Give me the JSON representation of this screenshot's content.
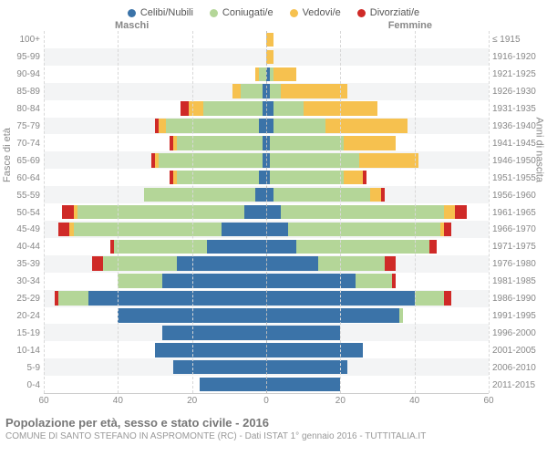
{
  "legend": [
    {
      "label": "Celibi/Nubili",
      "color": "#3b73a8"
    },
    {
      "label": "Coniugati/e",
      "color": "#b4d698"
    },
    {
      "label": "Vedovi/e",
      "color": "#f6c14f"
    },
    {
      "label": "Divorziati/e",
      "color": "#cf2a27"
    }
  ],
  "side_left": "Maschi",
  "side_right": "Femmine",
  "yaxis_left_title": "Fasce di età",
  "yaxis_right_title": "Anni di nascita",
  "age_groups": [
    "100+",
    "95-99",
    "90-94",
    "85-89",
    "80-84",
    "75-79",
    "70-74",
    "65-69",
    "60-64",
    "55-59",
    "50-54",
    "45-49",
    "40-44",
    "35-39",
    "30-34",
    "25-29",
    "20-24",
    "15-19",
    "10-14",
    "5-9",
    "0-4"
  ],
  "birth_years": [
    "≤ 1915",
    "1916-1920",
    "1921-1925",
    "1926-1930",
    "1931-1935",
    "1936-1940",
    "1941-1945",
    "1946-1950",
    "1951-1955",
    "1956-1960",
    "1961-1965",
    "1966-1970",
    "1971-1975",
    "1976-1980",
    "1981-1985",
    "1986-1990",
    "1991-1995",
    "1996-2000",
    "2001-2005",
    "2006-2010",
    "2011-2015"
  ],
  "xmax": 60,
  "xticks_left": [
    60,
    40,
    20,
    0
  ],
  "xticks_right": [
    0,
    20,
    40,
    60
  ],
  "data": {
    "male": [
      {
        "c": 0,
        "m": 0,
        "w": 0,
        "d": 0
      },
      {
        "c": 0,
        "m": 0,
        "w": 0,
        "d": 0
      },
      {
        "c": 0,
        "m": 2,
        "w": 1,
        "d": 0
      },
      {
        "c": 1,
        "m": 6,
        "w": 2,
        "d": 0
      },
      {
        "c": 1,
        "m": 16,
        "w": 4,
        "d": 2
      },
      {
        "c": 2,
        "m": 25,
        "w": 2,
        "d": 1
      },
      {
        "c": 1,
        "m": 23,
        "w": 1,
        "d": 1
      },
      {
        "c": 1,
        "m": 28,
        "w": 1,
        "d": 1
      },
      {
        "c": 2,
        "m": 22,
        "w": 1,
        "d": 1
      },
      {
        "c": 3,
        "m": 30,
        "w": 0,
        "d": 0
      },
      {
        "c": 6,
        "m": 45,
        "w": 1,
        "d": 3
      },
      {
        "c": 12,
        "m": 40,
        "w": 1,
        "d": 3
      },
      {
        "c": 16,
        "m": 25,
        "w": 0,
        "d": 1
      },
      {
        "c": 24,
        "m": 20,
        "w": 0,
        "d": 3
      },
      {
        "c": 28,
        "m": 12,
        "w": 0,
        "d": 0
      },
      {
        "c": 48,
        "m": 8,
        "w": 0,
        "d": 1
      },
      {
        "c": 40,
        "m": 0,
        "w": 0,
        "d": 0
      },
      {
        "c": 28,
        "m": 0,
        "w": 0,
        "d": 0
      },
      {
        "c": 30,
        "m": 0,
        "w": 0,
        "d": 0
      },
      {
        "c": 25,
        "m": 0,
        "w": 0,
        "d": 0
      },
      {
        "c": 18,
        "m": 0,
        "w": 0,
        "d": 0
      }
    ],
    "female": [
      {
        "c": 0,
        "m": 0,
        "w": 2,
        "d": 0
      },
      {
        "c": 0,
        "m": 0,
        "w": 2,
        "d": 0
      },
      {
        "c": 1,
        "m": 1,
        "w": 6,
        "d": 0
      },
      {
        "c": 1,
        "m": 3,
        "w": 18,
        "d": 0
      },
      {
        "c": 2,
        "m": 8,
        "w": 20,
        "d": 0
      },
      {
        "c": 2,
        "m": 14,
        "w": 22,
        "d": 0
      },
      {
        "c": 1,
        "m": 20,
        "w": 14,
        "d": 0
      },
      {
        "c": 1,
        "m": 24,
        "w": 16,
        "d": 0
      },
      {
        "c": 1,
        "m": 20,
        "w": 5,
        "d": 1
      },
      {
        "c": 2,
        "m": 26,
        "w": 3,
        "d": 1
      },
      {
        "c": 4,
        "m": 44,
        "w": 3,
        "d": 3
      },
      {
        "c": 6,
        "m": 41,
        "w": 1,
        "d": 2
      },
      {
        "c": 8,
        "m": 36,
        "w": 0,
        "d": 2
      },
      {
        "c": 14,
        "m": 18,
        "w": 0,
        "d": 3
      },
      {
        "c": 24,
        "m": 10,
        "w": 0,
        "d": 1
      },
      {
        "c": 40,
        "m": 8,
        "w": 0,
        "d": 2
      },
      {
        "c": 36,
        "m": 1,
        "w": 0,
        "d": 0
      },
      {
        "c": 20,
        "m": 0,
        "w": 0,
        "d": 0
      },
      {
        "c": 26,
        "m": 0,
        "w": 0,
        "d": 0
      },
      {
        "c": 22,
        "m": 0,
        "w": 0,
        "d": 0
      },
      {
        "c": 20,
        "m": 0,
        "w": 0,
        "d": 0
      }
    ]
  },
  "colors": {
    "c": "#3b73a8",
    "m": "#b4d698",
    "w": "#f6c14f",
    "d": "#cf2a27"
  },
  "grid_color": "#d8d8d8",
  "footer_title": "Popolazione per età, sesso e stato civile - 2016",
  "footer_sub": "COMUNE DI SANTO STEFANO IN ASPROMONTE (RC) - Dati ISTAT 1° gennaio 2016 - TUTTITALIA.IT"
}
